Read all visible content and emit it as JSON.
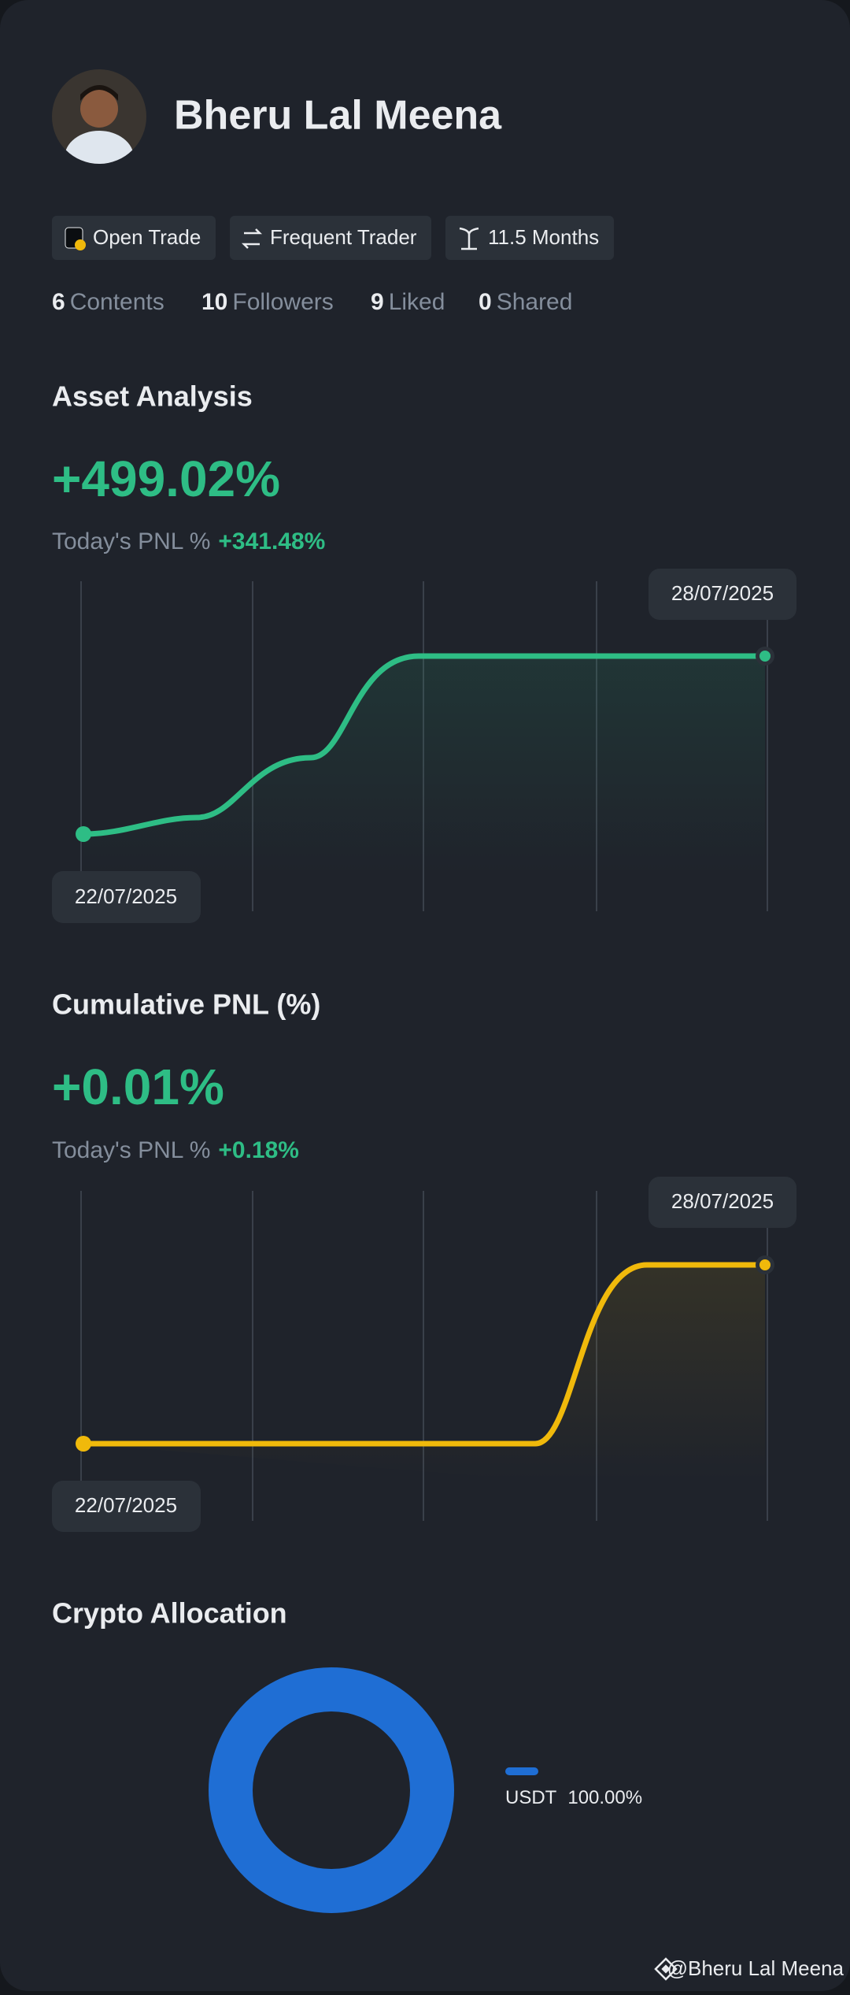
{
  "profile": {
    "name": "Bheru Lal Meena",
    "badges": [
      "Open Trade",
      "Frequent Trader",
      "11.5 Months"
    ],
    "stats": [
      {
        "value": "6",
        "label": "Contents"
      },
      {
        "value": "10",
        "label": "Followers"
      },
      {
        "value": "9",
        "label": "Liked"
      },
      {
        "value": "0",
        "label": "Shared"
      }
    ]
  },
  "asset_analysis": {
    "title": "Asset Analysis",
    "value": "+499.02%",
    "today_label": "Today's PNL %",
    "today_value": "+341.48%",
    "start_date": "22/07/2025",
    "end_date": "28/07/2025"
  },
  "cumulative_pnl": {
    "title": "Cumulative PNL (%)",
    "value": "+0.01%",
    "today_label": "Today's PNL %",
    "today_value": "+0.18%",
    "start_date": "22/07/2025",
    "end_date": "28/07/2025"
  },
  "crypto_allocation": {
    "title": "Crypto Allocation",
    "legend": [
      {
        "name": "USDT",
        "value": "100.00%"
      }
    ]
  },
  "footer": {
    "watermark": "@Bheru Lal Meena"
  }
}
